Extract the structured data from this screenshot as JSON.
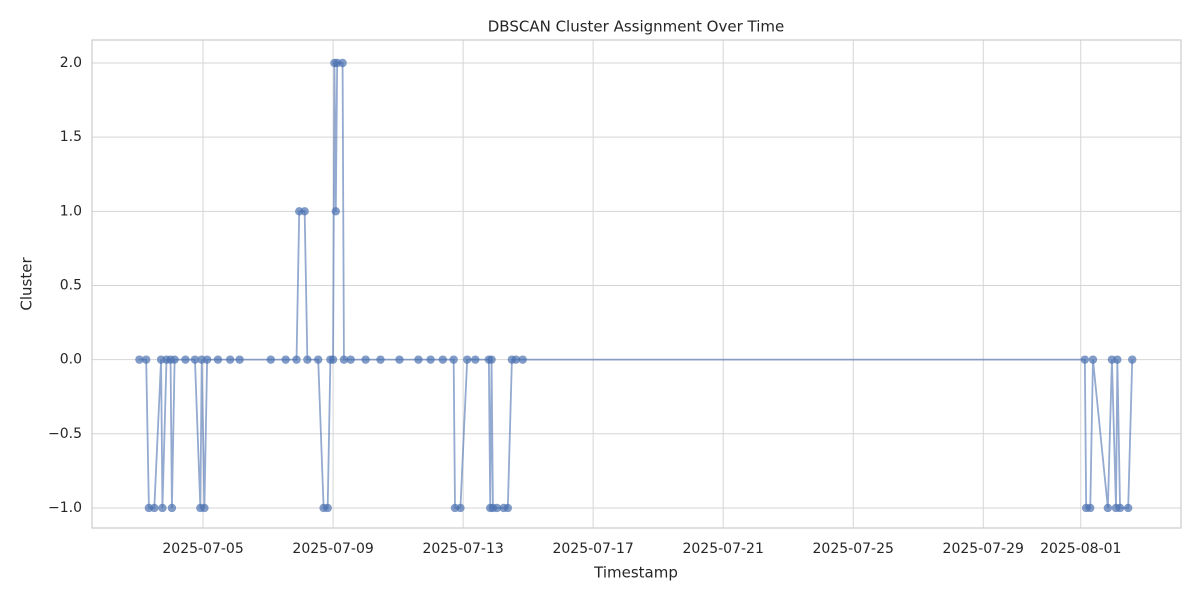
{
  "chart_data": {
    "type": "line",
    "title": "DBSCAN Cluster Assignment Over Time",
    "x_label": "Timestamp",
    "y_label": "Cluster",
    "color": "#4c72b0",
    "grid": true,
    "x": [
      "2025-07-03T01:00",
      "2025-07-03T06:00",
      "2025-07-03T08:00",
      "2025-07-03T12:00",
      "2025-07-03T17:00",
      "2025-07-03T18:00",
      "2025-07-03T21:00",
      "2025-07-04T00:00",
      "2025-07-04T01:00",
      "2025-07-04T03:00",
      "2025-07-04T11:00",
      "2025-07-04T18:00",
      "2025-07-04T22:00",
      "2025-07-04T23:00",
      "2025-07-05T01:00",
      "2025-07-05T03:00",
      "2025-07-05T11:00",
      "2025-07-05T20:00",
      "2025-07-06T03:00",
      "2025-07-07T02:00",
      "2025-07-07T13:00",
      "2025-07-07T21:00",
      "2025-07-07T23:00",
      "2025-07-08T03:00",
      "2025-07-08T05:00",
      "2025-07-08T13:00",
      "2025-07-08T17:00",
      "2025-07-08T20:00",
      "2025-07-08T22:00",
      "2025-07-09T00:00",
      "2025-07-09T01:00",
      "2025-07-09T02:00",
      "2025-07-09T03:00",
      "2025-07-09T07:00",
      "2025-07-09T08:00",
      "2025-07-09T13:00",
      "2025-07-10T00:00",
      "2025-07-10T11:00",
      "2025-07-11T01:00",
      "2025-07-11T15:00",
      "2025-07-12T00:00",
      "2025-07-12T09:00",
      "2025-07-12T17:00",
      "2025-07-12T18:00",
      "2025-07-12T22:00",
      "2025-07-13T03:00",
      "2025-07-13T09:00",
      "2025-07-13T19:00",
      "2025-07-13T20:00",
      "2025-07-13T21:00",
      "2025-07-13T22:00",
      "2025-07-14T01:00",
      "2025-07-14T06:00",
      "2025-07-14T09:00",
      "2025-07-14T12:00",
      "2025-07-14T15:00",
      "2025-07-14T20:00",
      "2025-08-01T03:00",
      "2025-08-01T04:00",
      "2025-08-01T07:00",
      "2025-08-01T09:00",
      "2025-08-01T20:00",
      "2025-08-01T23:00",
      "2025-08-02T02:00",
      "2025-08-02T03:00",
      "2025-08-02T05:00",
      "2025-08-02T11:00",
      "2025-08-02T14:00"
    ],
    "values": [
      0,
      0,
      -1,
      -1,
      0,
      -1,
      0,
      0,
      -1,
      0,
      0,
      0,
      -1,
      0,
      -1,
      0,
      0,
      0,
      0,
      0,
      0,
      0,
      1,
      1,
      0,
      0,
      -1,
      -1,
      0,
      0,
      2,
      1,
      2,
      2,
      0,
      0,
      0,
      0,
      0,
      0,
      0,
      0,
      0,
      -1,
      -1,
      0,
      0,
      0,
      -1,
      0,
      -1,
      -1,
      -1,
      -1,
      0,
      0,
      0,
      0,
      -1,
      -1,
      0,
      -1,
      0,
      -1,
      0,
      -1,
      -1,
      0
    ],
    "xlim": [
      "2025-07-01T14:00",
      "2025-08-04T02:00"
    ],
    "xticks": [
      "2025-07-05",
      "2025-07-09",
      "2025-07-13",
      "2025-07-17",
      "2025-07-21",
      "2025-07-25",
      "2025-07-29",
      "2025-08-01"
    ],
    "ylim": [
      -1.135,
      2.155
    ],
    "yticks": [
      {
        "value": -1,
        "label": "−1.0"
      },
      {
        "value": -0.5,
        "label": "−0.5"
      },
      {
        "value": 0,
        "label": "0.0"
      },
      0.5,
      {
        "value": 1,
        "label": "1.0"
      },
      1.5,
      {
        "value": 2,
        "label": "2.0"
      }
    ]
  }
}
